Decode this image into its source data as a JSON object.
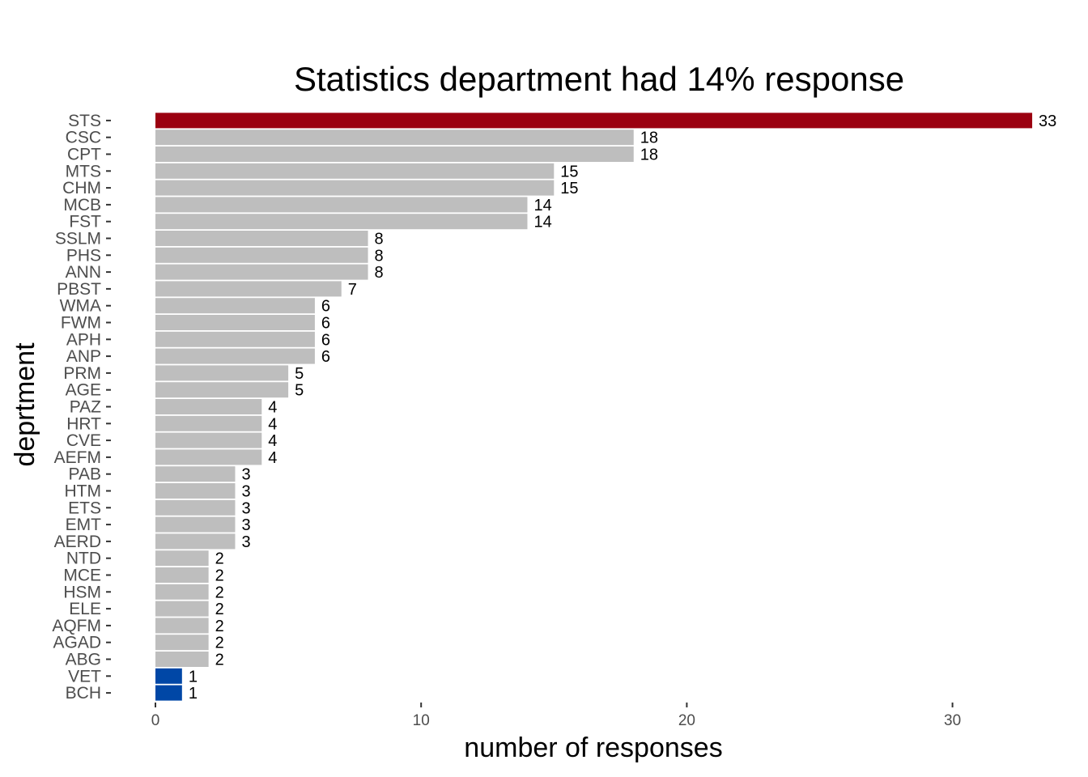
{
  "chart_data": {
    "type": "bar",
    "orientation": "horizontal",
    "title": "Statistics department had 14% response",
    "xlabel": "number of responses",
    "ylabel": "deprtment",
    "xlim": [
      0,
      33
    ],
    "xticks": [
      0,
      10,
      20,
      30
    ],
    "grid": false,
    "categories": [
      "STS",
      "CSC",
      "CPT",
      "MTS",
      "CHM",
      "MCB",
      "FST",
      "SSLM",
      "PHS",
      "ANN",
      "PBST",
      "WMA",
      "FWM",
      "APH",
      "ANP",
      "PRM",
      "AGE",
      "PAZ",
      "HRT",
      "CVE",
      "AEFM",
      "PAB",
      "HTM",
      "ETS",
      "EMT",
      "AERD",
      "NTD",
      "MCE",
      "HSM",
      "ELE",
      "AQFM",
      "AGAD",
      "ABG",
      "VET",
      "BCH"
    ],
    "values": [
      33,
      18,
      18,
      15,
      15,
      14,
      14,
      8,
      8,
      8,
      7,
      6,
      6,
      6,
      6,
      5,
      5,
      4,
      4,
      4,
      4,
      3,
      3,
      3,
      3,
      3,
      2,
      2,
      2,
      2,
      2,
      2,
      2,
      1,
      1
    ],
    "colors": {
      "highlight": "#9b0010",
      "default": "#bebebe",
      "lowest": "#0047a6"
    },
    "highlight_categories": [
      "STS"
    ],
    "lowest_categories": [
      "VET",
      "BCH"
    ]
  }
}
